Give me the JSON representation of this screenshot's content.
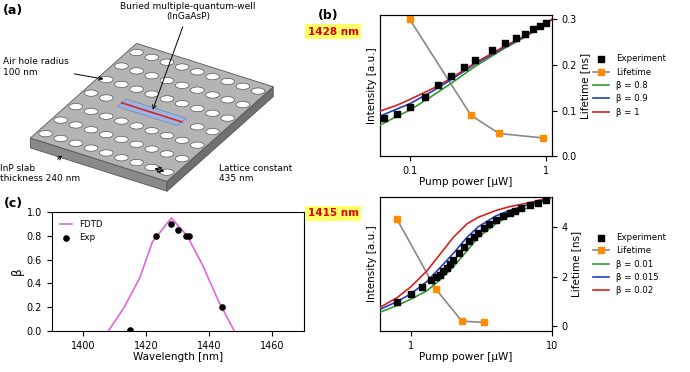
{
  "diagram": {
    "label": "(a)",
    "texts": [
      "Buried multiple-quantum-well\n(InGaAsP)",
      "Air hole radius\n100 nm",
      "InP slab\nthickness 240 nm",
      "Lattice constant\n435 nm"
    ]
  },
  "chart_data": [
    {
      "type": "line",
      "panel": "(b)",
      "annotations": [
        "1428 nm"
      ],
      "x_label": "Pump power [μW]",
      "y_label": "Intensity [a.u.]",
      "y2_label": "Lifetime [ns]",
      "log": true,
      "legend": "center left",
      "xlim": [
        0.06,
        1.1
      ],
      "xticks": [
        0.1,
        1
      ],
      "ylim": [
        1,
        1000
      ],
      "yticks": [],
      "y2lim": [
        0.0,
        0.31
      ],
      "y2ticks": [
        0.0,
        0.1,
        0.2,
        0.3
      ],
      "series": [
        {
          "name": "Experiment",
          "type": "scatter",
          "color": "#000000",
          "marker": "square",
          "x": [
            0.065,
            0.08,
            0.1,
            0.13,
            0.16,
            0.2,
            0.25,
            0.3,
            0.4,
            0.5,
            0.6,
            0.7,
            0.8,
            0.9,
            1.0
          ],
          "values": [
            6.5,
            8,
            11,
            18,
            32,
            50,
            78,
            110,
            180,
            250,
            330,
            400,
            500,
            570,
            660
          ]
        },
        {
          "name": "Lifetime",
          "type": "line",
          "axis": "y2",
          "color": "#ff8c00",
          "marker": "square",
          "line_style": "solid",
          "x": [
            0.1,
            0.28,
            0.45,
            0.95
          ],
          "values": [
            0.3,
            0.09,
            0.05,
            0.04
          ]
        },
        {
          "name": "β = 0.8",
          "type": "line",
          "color": "#2e9a2e",
          "line_style": "solid",
          "x": [
            0.06,
            0.08,
            0.1,
            0.15,
            0.2,
            0.3,
            0.5,
            0.7,
            1.1
          ],
          "values": [
            4.5,
            7,
            9.5,
            20,
            35,
            80,
            200,
            340,
            800
          ]
        },
        {
          "name": "β = 0.9",
          "type": "line",
          "color": "#1f3fbf",
          "line_style": "solid",
          "x": [
            0.06,
            0.08,
            0.1,
            0.15,
            0.2,
            0.3,
            0.5,
            0.7,
            1.1
          ],
          "values": [
            7,
            10,
            13,
            25,
            42,
            90,
            210,
            350,
            800
          ]
        },
        {
          "name": "β = 1",
          "type": "line",
          "color": "#d62020",
          "line_style": "solid",
          "x": [
            0.06,
            0.08,
            0.1,
            0.15,
            0.2,
            0.3,
            0.5,
            0.7,
            1.1
          ],
          "values": [
            9,
            12,
            16,
            28,
            45,
            95,
            220,
            360,
            800
          ]
        }
      ]
    },
    {
      "type": "line",
      "annotations": [
        "1415 nm"
      ],
      "x_label": "Pump power [μW]",
      "y_label": "Intensity [a.u.]",
      "y2_label": "Lifetime [ns]",
      "log": true,
      "legend": "center left",
      "xlim": [
        0.6,
        10
      ],
      "xticks": [
        1,
        10
      ],
      "ylim": [
        1,
        10000
      ],
      "yticks": [],
      "y2lim": [
        -0.2,
        5.2
      ],
      "y2ticks": [
        0,
        2,
        4
      ],
      "series": [
        {
          "name": "Experiment",
          "type": "scatter",
          "color": "#000000",
          "marker": "square",
          "x": [
            0.8,
            1.0,
            1.2,
            1.4,
            1.5,
            1.6,
            1.7,
            1.8,
            1.9,
            2.0,
            2.2,
            2.4,
            2.6,
            2.8,
            3.0,
            3.3,
            3.6,
            4,
            4.5,
            5,
            5.5,
            6,
            7,
            8,
            9
          ],
          "values": [
            7.6,
            13,
            21,
            33,
            40,
            48,
            63,
            76,
            100,
            132,
            209,
            331,
            479,
            631,
            832,
            1202,
            1585,
            2089,
            2754,
            3311,
            3981,
            4786,
            5754,
            6918,
            8318
          ]
        },
        {
          "name": "Lifetime",
          "type": "line",
          "axis": "y2",
          "color": "#ff8c00",
          "marker": "square",
          "line_style": "solid",
          "x": [
            0.8,
            1.5,
            2.3,
            3.3
          ],
          "values": [
            4.3,
            1.5,
            0.2,
            0.15
          ]
        },
        {
          "name": "β = 0.01",
          "type": "line",
          "color": "#2e9a2e",
          "line_style": "solid",
          "x": [
            0.6,
            0.8,
            1,
            1.3,
            1.6,
            2,
            2.5,
            3,
            4,
            5,
            7,
            10
          ],
          "values": [
            3.6,
            5.8,
            9,
            16,
            33,
            83,
            250,
            630,
            1600,
            2750,
            5200,
            10000
          ]
        },
        {
          "name": "β = 0.015",
          "type": "line",
          "color": "#1f3fbf",
          "line_style": "solid",
          "x": [
            0.6,
            0.8,
            1,
            1.3,
            1.6,
            2,
            2.5,
            3,
            4,
            5,
            7,
            10
          ],
          "values": [
            4.4,
            7.6,
            13,
            30,
            76,
            210,
            630,
            1300,
            2750,
            4000,
            6300,
            10000
          ]
        },
        {
          "name": "β = 0.02",
          "type": "line",
          "color": "#d62020",
          "line_style": "solid",
          "x": [
            0.6,
            0.8,
            1,
            1.3,
            1.6,
            2,
            2.5,
            3,
            4,
            5,
            7,
            10
          ],
          "values": [
            5,
            10,
            21,
            63,
            190,
            630,
            1600,
            2500,
            4000,
            5200,
            6900,
            10000
          ]
        }
      ]
    },
    {
      "type": "line",
      "panel": "(c)",
      "x_label": "Wavelength [nm]",
      "y_label": "β",
      "legend": "upper left",
      "xlim": [
        1390,
        1470
      ],
      "xticks": [
        1400,
        1420,
        1440,
        1460
      ],
      "ylim": [
        0.0,
        1.0
      ],
      "yticks": [
        0.0,
        0.2,
        0.4,
        0.6,
        0.8,
        1.0
      ],
      "series": [
        {
          "name": "FDTD",
          "type": "line",
          "color": "#e066e0",
          "line_style": "solid",
          "x": [
            1408,
            1413,
            1418,
            1422,
            1428,
            1433,
            1438,
            1443,
            1448
          ],
          "values": [
            0.0,
            0.2,
            0.45,
            0.75,
            0.95,
            0.8,
            0.55,
            0.25,
            0.0
          ]
        },
        {
          "name": "Exp",
          "type": "scatter",
          "color": "#000000",
          "marker": "circle",
          "x": [
            1415,
            1423,
            1428,
            1430,
            1432.5,
            1433.5,
            1444
          ],
          "values": [
            0.01,
            0.8,
            0.9,
            0.85,
            0.8,
            0.8,
            0.2
          ]
        }
      ]
    }
  ]
}
